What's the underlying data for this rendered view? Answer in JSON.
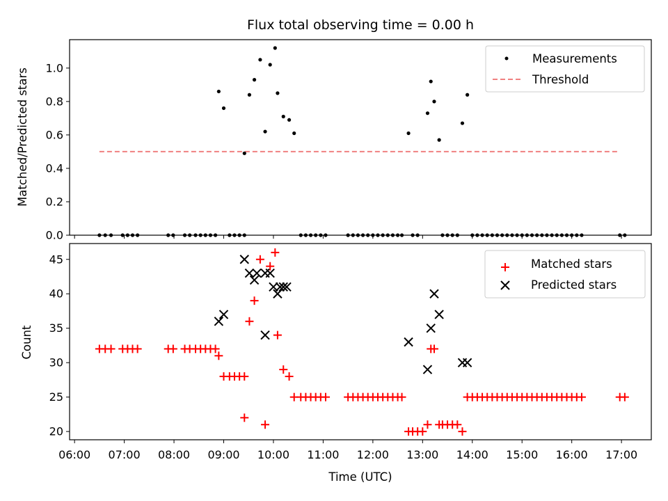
{
  "title": "Flux total observing time = 0.00 h",
  "colors": {
    "measurement": "#000000",
    "threshold": "#f08080",
    "matched": "#ff0000",
    "predicted": "#000000"
  },
  "top": {
    "ylabel": "Matched/Predicted stars",
    "ylim": [
      0,
      1.17
    ],
    "yticks": [
      "0.0",
      "0.2",
      "0.4",
      "0.6",
      "0.8",
      "1.0"
    ],
    "ytick_values": [
      0,
      0.2,
      0.4,
      0.6,
      0.8,
      1.0
    ],
    "legend": {
      "placement": "top-right",
      "items": [
        "Measurements",
        "Threshold"
      ]
    }
  },
  "bottom": {
    "ylabel": "Count",
    "xlabel": "Time (UTC)",
    "ylim": [
      18.8,
      47.3
    ],
    "yticks": [
      "20",
      "25",
      "30",
      "35",
      "40",
      "45"
    ],
    "ytick_values": [
      20,
      25,
      30,
      35,
      40,
      45
    ],
    "legend": {
      "placement": "top-right",
      "items": [
        "Matched stars",
        "Predicted stars"
      ]
    }
  },
  "x_axis": {
    "xlim": [
      "05:54",
      "17:36"
    ],
    "xticks": [
      "06:00",
      "07:00",
      "08:00",
      "09:00",
      "10:00",
      "11:00",
      "12:00",
      "13:00",
      "14:00",
      "15:00",
      "16:00",
      "17:00"
    ]
  },
  "chart_data": [
    {
      "type": "scatter",
      "title": "Flux total observing time = 0.00 h",
      "ylabel": "Matched/Predicted stars",
      "grid": false,
      "series": [
        {
          "name": "Measurements",
          "points": [
            [
              "06:30",
              0
            ],
            [
              "06:37",
              0
            ],
            [
              "06:44",
              0
            ],
            [
              "06:58",
              0
            ],
            [
              "07:04",
              0
            ],
            [
              "07:10",
              0
            ],
            [
              "07:16",
              0
            ],
            [
              "07:53",
              0
            ],
            [
              "07:59",
              0
            ],
            [
              "08:13",
              0
            ],
            [
              "08:19",
              0
            ],
            [
              "08:26",
              0
            ],
            [
              "08:32",
              0
            ],
            [
              "08:38",
              0
            ],
            [
              "08:44",
              0
            ],
            [
              "08:50",
              0
            ],
            [
              "09:07",
              0
            ],
            [
              "09:13",
              0
            ],
            [
              "09:19",
              0
            ],
            [
              "09:25",
              0
            ],
            [
              "08:54",
              0.86
            ],
            [
              "09:00",
              0.76
            ],
            [
              "09:25",
              0.49
            ],
            [
              "09:31",
              0.84
            ],
            [
              "09:37",
              0.93
            ],
            [
              "09:44",
              1.05
            ],
            [
              "09:50",
              0.62
            ],
            [
              "09:56",
              1.02
            ],
            [
              "10:02",
              1.12
            ],
            [
              "10:05",
              0.85
            ],
            [
              "10:12",
              0.71
            ],
            [
              "10:19",
              0.69
            ],
            [
              "10:25",
              0.61
            ],
            [
              "10:33",
              0
            ],
            [
              "10:39",
              0
            ],
            [
              "10:45",
              0
            ],
            [
              "10:51",
              0
            ],
            [
              "10:57",
              0
            ],
            [
              "11:03",
              0
            ],
            [
              "11:30",
              0
            ],
            [
              "11:36",
              0
            ],
            [
              "11:42",
              0
            ],
            [
              "11:48",
              0
            ],
            [
              "11:54",
              0
            ],
            [
              "12:00",
              0
            ],
            [
              "12:06",
              0
            ],
            [
              "12:12",
              0
            ],
            [
              "12:18",
              0
            ],
            [
              "12:24",
              0
            ],
            [
              "12:30",
              0
            ],
            [
              "12:35",
              0
            ],
            [
              "12:43",
              0.61
            ],
            [
              "12:48",
              0
            ],
            [
              "12:54",
              0
            ],
            [
              "13:06",
              0.73
            ],
            [
              "13:10",
              0.92
            ],
            [
              "13:14",
              0.8
            ],
            [
              "13:20",
              0.57
            ],
            [
              "13:24",
              0
            ],
            [
              "13:30",
              0
            ],
            [
              "13:36",
              0
            ],
            [
              "13:42",
              0
            ],
            [
              "13:48",
              0.67
            ],
            [
              "13:54",
              0.84
            ],
            [
              "14:00",
              0
            ],
            [
              "14:06",
              0
            ],
            [
              "14:12",
              0
            ],
            [
              "14:18",
              0
            ],
            [
              "14:24",
              0
            ],
            [
              "14:30",
              0
            ],
            [
              "14:36",
              0
            ],
            [
              "14:42",
              0
            ],
            [
              "14:48",
              0
            ],
            [
              "14:54",
              0
            ],
            [
              "15:00",
              0
            ],
            [
              "15:06",
              0
            ],
            [
              "15:12",
              0
            ],
            [
              "15:18",
              0
            ],
            [
              "15:24",
              0
            ],
            [
              "15:30",
              0
            ],
            [
              "15:36",
              0
            ],
            [
              "15:42",
              0
            ],
            [
              "15:48",
              0
            ],
            [
              "15:54",
              0
            ],
            [
              "16:00",
              0
            ],
            [
              "16:06",
              0
            ],
            [
              "16:12",
              0
            ],
            [
              "16:58",
              0
            ],
            [
              "17:04",
              0
            ]
          ]
        },
        {
          "name": "Threshold",
          "style": "dashed",
          "points": [
            [
              "06:30",
              0.5
            ],
            [
              "16:58",
              0.5
            ]
          ]
        }
      ]
    },
    {
      "type": "scatter",
      "ylabel": "Count",
      "xlabel": "Time (UTC)",
      "grid": false,
      "series": [
        {
          "name": "Matched stars",
          "marker": "plus",
          "points": [
            [
              "06:30",
              32
            ],
            [
              "06:37",
              32
            ],
            [
              "06:44",
              32
            ],
            [
              "06:58",
              32
            ],
            [
              "07:04",
              32
            ],
            [
              "07:10",
              32
            ],
            [
              "07:16",
              32
            ],
            [
              "07:53",
              32
            ],
            [
              "07:59",
              32
            ],
            [
              "08:13",
              32
            ],
            [
              "08:19",
              32
            ],
            [
              "08:26",
              32
            ],
            [
              "08:32",
              32
            ],
            [
              "08:38",
              32
            ],
            [
              "08:44",
              32
            ],
            [
              "08:50",
              32
            ],
            [
              "08:54",
              31
            ],
            [
              "09:00",
              28
            ],
            [
              "09:07",
              28
            ],
            [
              "09:13",
              28
            ],
            [
              "09:19",
              28
            ],
            [
              "09:25",
              28
            ],
            [
              "09:25",
              22
            ],
            [
              "09:31",
              36
            ],
            [
              "09:37",
              39
            ],
            [
              "09:44",
              45
            ],
            [
              "09:50",
              21
            ],
            [
              "09:56",
              44
            ],
            [
              "10:02",
              46
            ],
            [
              "10:05",
              34
            ],
            [
              "10:12",
              29
            ],
            [
              "10:19",
              28
            ],
            [
              "10:25",
              25
            ],
            [
              "10:33",
              25
            ],
            [
              "10:39",
              25
            ],
            [
              "10:45",
              25
            ],
            [
              "10:51",
              25
            ],
            [
              "10:57",
              25
            ],
            [
              "11:03",
              25
            ],
            [
              "11:30",
              25
            ],
            [
              "11:36",
              25
            ],
            [
              "11:42",
              25
            ],
            [
              "11:48",
              25
            ],
            [
              "11:54",
              25
            ],
            [
              "12:00",
              25
            ],
            [
              "12:06",
              25
            ],
            [
              "12:12",
              25
            ],
            [
              "12:18",
              25
            ],
            [
              "12:24",
              25
            ],
            [
              "12:30",
              25
            ],
            [
              "12:35",
              25
            ],
            [
              "12:43",
              20
            ],
            [
              "12:48",
              20
            ],
            [
              "12:54",
              20
            ],
            [
              "13:00",
              20
            ],
            [
              "13:06",
              21
            ],
            [
              "13:10",
              32
            ],
            [
              "13:14",
              32
            ],
            [
              "13:20",
              21
            ],
            [
              "13:24",
              21
            ],
            [
              "13:30",
              21
            ],
            [
              "13:36",
              21
            ],
            [
              "13:42",
              21
            ],
            [
              "13:48",
              20
            ],
            [
              "13:54",
              25
            ],
            [
              "14:00",
              25
            ],
            [
              "14:06",
              25
            ],
            [
              "14:12",
              25
            ],
            [
              "14:18",
              25
            ],
            [
              "14:24",
              25
            ],
            [
              "14:30",
              25
            ],
            [
              "14:36",
              25
            ],
            [
              "14:42",
              25
            ],
            [
              "14:48",
              25
            ],
            [
              "14:54",
              25
            ],
            [
              "15:00",
              25
            ],
            [
              "15:06",
              25
            ],
            [
              "15:12",
              25
            ],
            [
              "15:18",
              25
            ],
            [
              "15:24",
              25
            ],
            [
              "15:30",
              25
            ],
            [
              "15:36",
              25
            ],
            [
              "15:42",
              25
            ],
            [
              "15:48",
              25
            ],
            [
              "15:54",
              25
            ],
            [
              "16:00",
              25
            ],
            [
              "16:06",
              25
            ],
            [
              "16:12",
              25
            ],
            [
              "16:58",
              25
            ],
            [
              "17:04",
              25
            ]
          ]
        },
        {
          "name": "Predicted stars",
          "marker": "x",
          "points": [
            [
              "08:54",
              36
            ],
            [
              "09:00",
              37
            ],
            [
              "09:25",
              45
            ],
            [
              "09:31",
              43
            ],
            [
              "09:37",
              42
            ],
            [
              "09:40",
              43
            ],
            [
              "09:50",
              34
            ],
            [
              "09:50",
              43
            ],
            [
              "09:56",
              43
            ],
            [
              "10:00",
              41
            ],
            [
              "10:05",
              40
            ],
            [
              "10:08",
              41
            ],
            [
              "10:12",
              41
            ],
            [
              "10:16",
              41
            ],
            [
              "12:43",
              33
            ],
            [
              "13:06",
              29
            ],
            [
              "13:10",
              35
            ],
            [
              "13:14",
              40
            ],
            [
              "13:20",
              37
            ],
            [
              "13:48",
              30
            ],
            [
              "13:54",
              30
            ]
          ]
        }
      ]
    }
  ]
}
